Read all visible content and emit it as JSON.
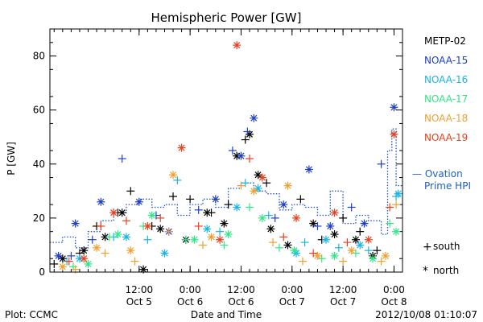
{
  "chart_data": {
    "type": "scatter",
    "title": "Hemispheric Power [GW]",
    "ylabel": "P [GW]",
    "xlabel": "Date and Time",
    "ylim": [
      0,
      90
    ],
    "yticks": [
      0,
      20,
      40,
      60,
      80
    ],
    "xlim": [
      "2012-10-04T15:00",
      "2012-10-08T02:00"
    ],
    "xticks": [
      {
        "time": "2012-10-05T12:00",
        "label": "12:00",
        "sublabel": "Oct 5"
      },
      {
        "time": "2012-10-06T00:00",
        "label": "0:00",
        "sublabel": "Oct 6"
      },
      {
        "time": "2012-10-06T12:00",
        "label": "12:00",
        "sublabel": "Oct 6"
      },
      {
        "time": "2012-10-07T00:00",
        "label": "0:00",
        "sublabel": "Oct 7"
      },
      {
        "time": "2012-10-07T12:00",
        "label": "12:00",
        "sublabel": "Oct 7"
      },
      {
        "time": "2012-10-08T00:00",
        "label": "0:00",
        "sublabel": "Oct 8"
      }
    ],
    "legend": [
      {
        "name": "METP-02",
        "color": "#000000"
      },
      {
        "name": "NOAA-15",
        "color": "#1f3fc8"
      },
      {
        "name": "NOAA-16",
        "color": "#17b4e6"
      },
      {
        "name": "NOAA-17",
        "color": "#2ee884"
      },
      {
        "name": "NOAA-18",
        "color": "#f0a030"
      },
      {
        "name": "NOAA-19",
        "color": "#e8401c"
      }
    ],
    "model_legend": {
      "line1": "— Ovation",
      "line2": "Prime HPI",
      "color": "#1f5fc8"
    },
    "marker_legend": [
      {
        "symbol": "+",
        "label": "south"
      },
      {
        "symbol": "*",
        "label": "north"
      }
    ],
    "ovation": {
      "name": "Ovation Prime HPI",
      "color": "#2050d0",
      "x": [
        "2012-10-04T15:00",
        "2012-10-04T18:00",
        "2012-10-04T21:00",
        "2012-10-05T00:00",
        "2012-10-05T03:00",
        "2012-10-05T06:00",
        "2012-10-05T09:00",
        "2012-10-05T12:00",
        "2012-10-05T15:00",
        "2012-10-05T18:00",
        "2012-10-05T21:00",
        "2012-10-06T00:00",
        "2012-10-06T03:00",
        "2012-10-06T06:00",
        "2012-10-06T09:00",
        "2012-10-06T12:00",
        "2012-10-06T15:00",
        "2012-10-06T18:00",
        "2012-10-06T21:00",
        "2012-10-07T00:00",
        "2012-10-07T03:00",
        "2012-10-07T06:00",
        "2012-10-07T09:00",
        "2012-10-07T12:00",
        "2012-10-07T15:00",
        "2012-10-07T18:00",
        "2012-10-07T21:00",
        "2012-10-07T22:30",
        "2012-10-07T23:30",
        "2012-10-08T00:30"
      ],
      "y": [
        11,
        13,
        9,
        15,
        19,
        22,
        25,
        27,
        24,
        25,
        21,
        25,
        27,
        24,
        31,
        33,
        30,
        29,
        23,
        25,
        24,
        21,
        30,
        18,
        21,
        19,
        14,
        45,
        53,
        32
      ]
    },
    "series": [
      {
        "name": "METP-02",
        "color": "#000000",
        "south": {
          "x": [
            "2012-10-04T16:00",
            "2012-10-04T22:00",
            "2012-10-05T02:00",
            "2012-10-05T07:00",
            "2012-10-05T10:00",
            "2012-10-05T15:00",
            "2012-10-05T20:00",
            "2012-10-06T00:00",
            "2012-10-06T05:00",
            "2012-10-06T09:00",
            "2012-10-06T13:00",
            "2012-10-06T18:00",
            "2012-10-07T02:00",
            "2012-10-07T07:00",
            "2012-10-07T12:00",
            "2012-10-07T16:00",
            "2012-10-07T20:00"
          ],
          "y": [
            3,
            7,
            17,
            22,
            30,
            17,
            28,
            27,
            22,
            25,
            49,
            33,
            27,
            12,
            20,
            15,
            8
          ]
        },
        "north": {
          "x": [
            "2012-10-04T18:00",
            "2012-10-04T23:00",
            "2012-10-05T04:00",
            "2012-10-05T08:00",
            "2012-10-05T13:00",
            "2012-10-05T17:00",
            "2012-10-05T23:00",
            "2012-10-06T04:00",
            "2012-10-06T08:00",
            "2012-10-06T11:00",
            "2012-10-06T14:00",
            "2012-10-06T16:00",
            "2012-10-06T19:00",
            "2012-10-06T23:00",
            "2012-10-07T05:00",
            "2012-10-07T10:00",
            "2012-10-07T15:00",
            "2012-10-07T19:00"
          ],
          "y": [
            5,
            8,
            13,
            22,
            1,
            16,
            12,
            22,
            18,
            43,
            51,
            36,
            16,
            10,
            18,
            14,
            12,
            6
          ]
        }
      },
      {
        "name": "NOAA-15",
        "color": "#1f3fc8",
        "south": {
          "x": [
            "2012-10-04T20:00",
            "2012-10-05T01:00",
            "2012-10-05T08:00",
            "2012-10-05T16:00",
            "2012-10-06T02:00",
            "2012-10-06T10:00",
            "2012-10-06T13:30",
            "2012-10-06T20:00",
            "2012-10-07T06:00",
            "2012-10-07T14:00",
            "2012-10-07T21:00"
          ],
          "y": [
            6,
            12,
            42,
            21,
            23,
            45,
            52,
            20,
            17,
            24,
            40
          ]
        },
        "north": {
          "x": [
            "2012-10-04T17:00",
            "2012-10-04T21:00",
            "2012-10-05T03:00",
            "2012-10-05T12:00",
            "2012-10-05T19:00",
            "2012-10-06T06:00",
            "2012-10-06T12:00",
            "2012-10-06T15:00",
            "2012-10-06T22:00",
            "2012-10-07T04:00",
            "2012-10-07T09:00",
            "2012-10-07T17:00",
            "2012-10-08T00:00"
          ],
          "y": [
            6,
            18,
            26,
            26,
            15,
            27,
            43,
            57,
            25,
            38,
            17,
            18,
            61
          ]
        }
      },
      {
        "name": "NOAA-16",
        "color": "#17b4e6",
        "south": {
          "x": [
            "2012-10-04T19:00",
            "2012-10-05T06:00",
            "2012-10-05T14:00",
            "2012-10-05T21:00",
            "2012-10-06T07:00",
            "2012-10-06T13:00",
            "2012-10-06T18:30",
            "2012-10-07T03:00",
            "2012-10-07T11:00",
            "2012-10-07T18:00",
            "2012-10-08T00:30"
          ],
          "y": [
            4,
            13,
            12,
            34,
            15,
            33,
            21,
            11,
            9,
            8,
            28
          ]
        },
        "north": {
          "x": [
            "2012-10-04T22:00",
            "2012-10-05T09:00",
            "2012-10-05T18:00",
            "2012-10-06T04:00",
            "2012-10-06T11:00",
            "2012-10-06T16:00",
            "2012-10-07T01:00",
            "2012-10-07T08:00",
            "2012-10-07T16:00",
            "2012-10-08T01:00"
          ],
          "y": [
            5,
            13,
            7,
            16,
            24,
            31,
            7,
            12,
            10,
            29
          ]
        }
      },
      {
        "name": "NOAA-17",
        "color": "#2ee884",
        "south": {
          "x": [
            "2012-10-04T20:30",
            "2012-10-05T05:00",
            "2012-10-05T13:00",
            "2012-10-05T23:00",
            "2012-10-06T08:00",
            "2012-10-06T14:00",
            "2012-10-06T21:00",
            "2012-10-07T07:00",
            "2012-10-07T15:00",
            "2012-10-07T23:00"
          ],
          "y": [
            2,
            13,
            17,
            12,
            10,
            24,
            9,
            5,
            7,
            18
          ]
        },
        "north": {
          "x": [
            "2012-10-05T00:00",
            "2012-10-05T07:00",
            "2012-10-05T15:00",
            "2012-10-06T01:00",
            "2012-10-06T09:00",
            "2012-10-06T17:00",
            "2012-10-07T00:30",
            "2012-10-07T10:00",
            "2012-10-07T19:00",
            "2012-10-08T00:30"
          ],
          "y": [
            3,
            14,
            21,
            12,
            14,
            20,
            8,
            6,
            5,
            15
          ]
        }
      },
      {
        "name": "NOAA-18",
        "color": "#f0a030",
        "south": {
          "x": [
            "2012-10-04T21:00",
            "2012-10-05T04:00",
            "2012-10-05T11:00",
            "2012-10-05T19:00",
            "2012-10-06T03:00",
            "2012-10-06T12:00",
            "2012-10-06T19:30",
            "2012-10-07T02:30",
            "2012-10-07T12:00",
            "2012-10-07T21:00",
            "2012-10-08T00:30"
          ],
          "y": [
            1,
            7,
            4,
            15,
            10,
            32,
            11,
            4,
            4,
            4,
            25
          ]
        },
        "north": {
          "x": [
            "2012-10-04T18:00",
            "2012-10-05T02:00",
            "2012-10-05T10:00",
            "2012-10-05T20:00",
            "2012-10-06T05:00",
            "2012-10-06T15:00",
            "2012-10-06T23:00",
            "2012-10-07T06:00",
            "2012-10-07T14:00",
            "2012-10-07T22:00"
          ],
          "y": [
            2,
            9,
            8,
            36,
            13,
            30,
            32,
            6,
            8,
            6
          ]
        }
      },
      {
        "name": "NOAA-19",
        "color": "#e8401c",
        "south": {
          "x": [
            "2012-10-04T19:30",
            "2012-10-05T03:00",
            "2012-10-05T09:00",
            "2012-10-05T17:00",
            "2012-10-06T02:00",
            "2012-10-06T14:00",
            "2012-10-06T22:00",
            "2012-10-07T05:00",
            "2012-10-07T13:00",
            "2012-10-07T23:00"
          ],
          "y": [
            4,
            17,
            19,
            20,
            17,
            42,
            13,
            7,
            11,
            24
          ]
        },
        "north": {
          "x": [
            "2012-10-04T23:00",
            "2012-10-05T06:00",
            "2012-10-05T14:00",
            "2012-10-05T22:00",
            "2012-10-06T07:00",
            "2012-10-06T11:00",
            "2012-10-06T17:00",
            "2012-10-07T01:00",
            "2012-10-07T10:00",
            "2012-10-07T18:00",
            "2012-10-08T00:00"
          ],
          "y": [
            5,
            22,
            17,
            46,
            12,
            84,
            35,
            20,
            22,
            12,
            51
          ]
        }
      }
    ]
  },
  "footer": {
    "plot_source": "Plot: CCMC",
    "timestamp": "2012/10/08 01:10:07"
  }
}
